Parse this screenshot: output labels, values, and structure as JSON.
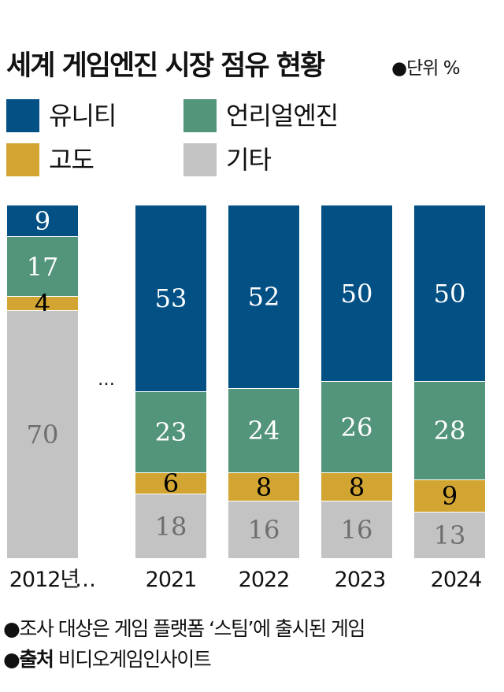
{
  "header": {
    "title": "세계 게임엔진 시장 점유 현황",
    "unit": "●단위 %"
  },
  "legend": [
    {
      "label": "유니티",
      "color": "#035085"
    },
    {
      "label": "언리얼엔진",
      "color": "#53957A"
    },
    {
      "label": "고도",
      "color": "#D2A533"
    },
    {
      "label": "기타",
      "color": "#C2C3C2"
    }
  ],
  "axis": {
    "ellipsis": "…",
    "labels": [
      "2012년",
      "2021",
      "2022",
      "2023",
      "2024"
    ]
  },
  "notes": {
    "note1": "●조사 대상은 게임 플랫폼 ‘스팀’에 출시된 게임",
    "source_bullet": "●",
    "source_label": "출처",
    "source_text": " 비디오게임인사이트"
  },
  "chart_data": {
    "type": "bar",
    "stacked": true,
    "title": "세계 게임엔진 시장 점유 현황",
    "subtitle": "단위 %",
    "categories": [
      "2012",
      "2021",
      "2022",
      "2023",
      "2024"
    ],
    "category_labels": [
      "2012년",
      "2021",
      "2022",
      "2023",
      "2024"
    ],
    "series": [
      {
        "name": "유니티",
        "color": "#035085",
        "values": [
          9,
          53,
          52,
          50,
          50
        ]
      },
      {
        "name": "언리얼엔진",
        "color": "#53957A",
        "values": [
          17,
          23,
          24,
          26,
          28
        ]
      },
      {
        "name": "고도",
        "color": "#D2A533",
        "values": [
          4,
          6,
          8,
          8,
          9
        ]
      },
      {
        "name": "기타",
        "color": "#C2C3C2",
        "values": [
          70,
          18,
          16,
          16,
          13
        ]
      }
    ],
    "xlabel": "",
    "ylabel": "",
    "ylim": [
      0,
      100
    ],
    "grid": false,
    "legend_position": "top",
    "annotations": [
      "… (gap between 2012 and 2021)",
      "조사 대상은 게임 플랫폼 ‘스팀’에 출시된 게임",
      "출처 비디오게임인사이트"
    ]
  }
}
